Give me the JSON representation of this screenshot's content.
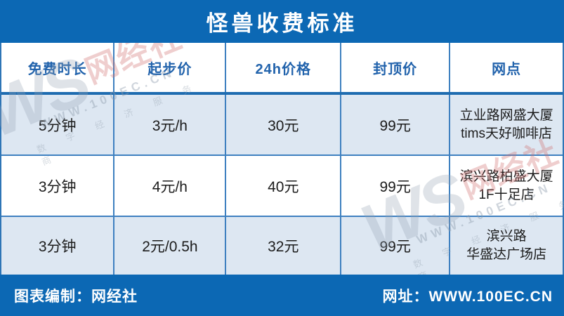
{
  "title": "怪兽收费标准",
  "colors": {
    "primary_blue": "#0c68b4",
    "header_text_blue": "#2263ac",
    "row_alt_blue": "#dde7f2",
    "grid_line_blue": "#3e80c0",
    "text_dark": "#1b1b1b"
  },
  "table": {
    "headers": [
      "免费时长",
      "起步价",
      "24h价格",
      "封顶价",
      "网点"
    ],
    "rows": [
      [
        "5分钟",
        "3元/h",
        "30元",
        "99元",
        "立业路网盛大厦\ntims天好咖啡店"
      ],
      [
        "3分钟",
        "4元/h",
        "40元",
        "99元",
        "滨兴路柏盛大厦\n1F十足店"
      ],
      [
        "3分钟",
        "2元/0.5h",
        "32元",
        "99元",
        "滨兴路\n华盛达广场店"
      ]
    ]
  },
  "footer": {
    "left": "图表编制：网经社",
    "right": "网址：WWW.100EC.CN"
  },
  "watermark": {
    "ws": "WS",
    "brand": "网经社",
    "url": "WWW.100EC.CN",
    "slogan": "数 字 经 济 服 务 商"
  },
  "chart_data": {
    "type": "table",
    "title": "怪兽收费标准",
    "columns": [
      "免费时长",
      "起步价",
      "24h价格",
      "封顶价",
      "网点"
    ],
    "rows": [
      [
        "5分钟",
        "3元/h",
        "30元",
        "99元",
        "立业路网盛大厦 tims天好咖啡店"
      ],
      [
        "3分钟",
        "4元/h",
        "40元",
        "99元",
        "滨兴路柏盛大厦 1F十足店"
      ],
      [
        "3分钟",
        "2元/0.5h",
        "32元",
        "99元",
        "滨兴路 华盛达广场店"
      ]
    ],
    "source_note": "图表编制：网经社",
    "website": "WWW.100EC.CN"
  }
}
